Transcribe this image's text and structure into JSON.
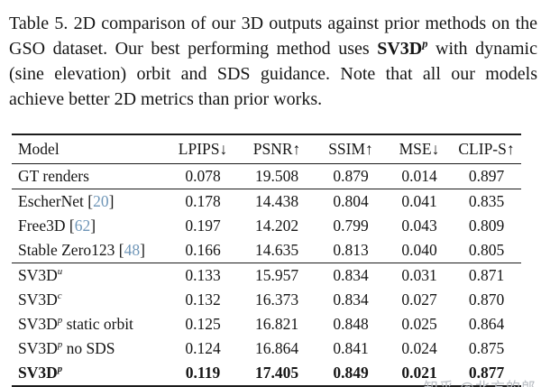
{
  "caption": {
    "before_bold": "Table 5.  2D comparison of our 3D outputs against prior methods on the GSO dataset. Our best performing method uses ",
    "bold": "SV3D",
    "bold_sup": "p",
    "after_bold": " with dynamic (sine elevation) orbit and SDS guidance. Note that all our models achieve better 2D metrics than prior works."
  },
  "table": {
    "columns": [
      "Model",
      "LPIPS↓",
      "PSNR↑",
      "SSIM↑",
      "MSE↓",
      "CLIP-S↑"
    ],
    "groups": [
      {
        "rows": [
          {
            "model": [
              {
                "type": "text",
                "text": "GT renders"
              }
            ],
            "values": [
              "0.078",
              "19.508",
              "0.879",
              "0.014",
              "0.897"
            ],
            "bold": false
          }
        ]
      },
      {
        "rows": [
          {
            "model": [
              {
                "type": "text",
                "text": "EscherNet ["
              },
              {
                "type": "cite",
                "text": "20"
              },
              {
                "type": "text",
                "text": "]"
              }
            ],
            "values": [
              "0.178",
              "14.438",
              "0.804",
              "0.041",
              "0.835"
            ],
            "bold": false
          },
          {
            "model": [
              {
                "type": "text",
                "text": "Free3D ["
              },
              {
                "type": "cite",
                "text": "62"
              },
              {
                "type": "text",
                "text": "]"
              }
            ],
            "values": [
              "0.197",
              "14.202",
              "0.799",
              "0.043",
              "0.809"
            ],
            "bold": false
          },
          {
            "model": [
              {
                "type": "text",
                "text": "Stable Zero123 ["
              },
              {
                "type": "cite",
                "text": "48"
              },
              {
                "type": "text",
                "text": "]"
              }
            ],
            "values": [
              "0.166",
              "14.635",
              "0.813",
              "0.040",
              "0.805"
            ],
            "bold": false
          }
        ]
      },
      {
        "rows": [
          {
            "model": [
              {
                "type": "text",
                "text": "SV3D"
              },
              {
                "type": "sup",
                "text": "u"
              }
            ],
            "values": [
              "0.133",
              "15.957",
              "0.834",
              "0.031",
              "0.871"
            ],
            "bold": false
          },
          {
            "model": [
              {
                "type": "text",
                "text": "SV3D"
              },
              {
                "type": "sup",
                "text": "c"
              }
            ],
            "values": [
              "0.132",
              "16.373",
              "0.834",
              "0.027",
              "0.870"
            ],
            "bold": false
          },
          {
            "model": [
              {
                "type": "text",
                "text": "SV3D"
              },
              {
                "type": "sup",
                "text": "p"
              },
              {
                "type": "text",
                "text": " static orbit"
              }
            ],
            "values": [
              "0.125",
              "16.821",
              "0.848",
              "0.025",
              "0.864"
            ],
            "bold": false
          },
          {
            "model": [
              {
                "type": "text",
                "text": "SV3D"
              },
              {
                "type": "sup",
                "text": "p"
              },
              {
                "type": "text",
                "text": " no SDS"
              }
            ],
            "values": [
              "0.124",
              "16.864",
              "0.841",
              "0.024",
              "0.875"
            ],
            "bold": false
          },
          {
            "model": [
              {
                "type": "text",
                "text": "SV3D"
              },
              {
                "type": "sup",
                "text": "p"
              }
            ],
            "values": [
              "0.119",
              "17.405",
              "0.849",
              "0.021",
              "0.877"
            ],
            "bold": true
          }
        ]
      }
    ]
  },
  "watermark": "知乎 @北方的郎",
  "colors": {
    "text": "#161616",
    "citation": "#6F96B8",
    "watermark": "#b9bdc3",
    "background": "#ffffff"
  }
}
